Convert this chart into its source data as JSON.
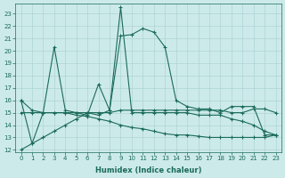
{
  "xlabel": "Humidex (Indice chaleur)",
  "xlim": [
    -0.5,
    23.5
  ],
  "ylim": [
    11.8,
    23.8
  ],
  "yticks": [
    12,
    13,
    14,
    15,
    16,
    17,
    18,
    19,
    20,
    21,
    22,
    23
  ],
  "xticks": [
    0,
    1,
    2,
    3,
    4,
    5,
    6,
    7,
    8,
    9,
    10,
    11,
    12,
    13,
    14,
    15,
    16,
    17,
    18,
    19,
    20,
    21,
    22,
    23
  ],
  "bg_color": "#cdeaea",
  "line_color": "#1a6b5a",
  "grid_color": "#aed4d4",
  "s1": [
    16.0,
    12.5,
    15.0,
    20.3,
    15.2,
    15.0,
    14.8,
    17.3,
    15.2,
    21.2,
    21.3,
    21.8,
    21.5,
    20.3,
    16.0,
    15.5,
    15.3,
    15.3,
    15.0,
    15.5,
    15.5,
    15.5,
    13.2,
    13.2
  ],
  "s2": [
    15.0,
    15.0,
    15.0,
    15.0,
    15.0,
    15.0,
    15.0,
    15.0,
    15.0,
    15.2,
    15.2,
    15.2,
    15.2,
    15.2,
    15.2,
    15.2,
    15.2,
    15.2,
    15.2,
    15.0,
    15.0,
    15.3,
    15.3,
    15.0
  ],
  "s3": [
    16.0,
    15.2,
    15.0,
    15.0,
    15.0,
    14.8,
    14.7,
    14.5,
    14.3,
    14.0,
    13.8,
    13.7,
    13.5,
    13.3,
    13.2,
    13.2,
    13.1,
    13.0,
    13.0,
    13.0,
    13.0,
    13.0,
    13.0,
    13.2
  ],
  "s4": [
    12.0,
    12.5,
    13.0,
    13.5,
    14.0,
    14.5,
    15.0,
    14.8,
    15.2,
    23.5,
    15.0,
    15.0,
    15.0,
    15.0,
    15.0,
    15.0,
    14.8,
    14.8,
    14.8,
    14.5,
    14.3,
    14.0,
    13.5,
    13.2
  ]
}
